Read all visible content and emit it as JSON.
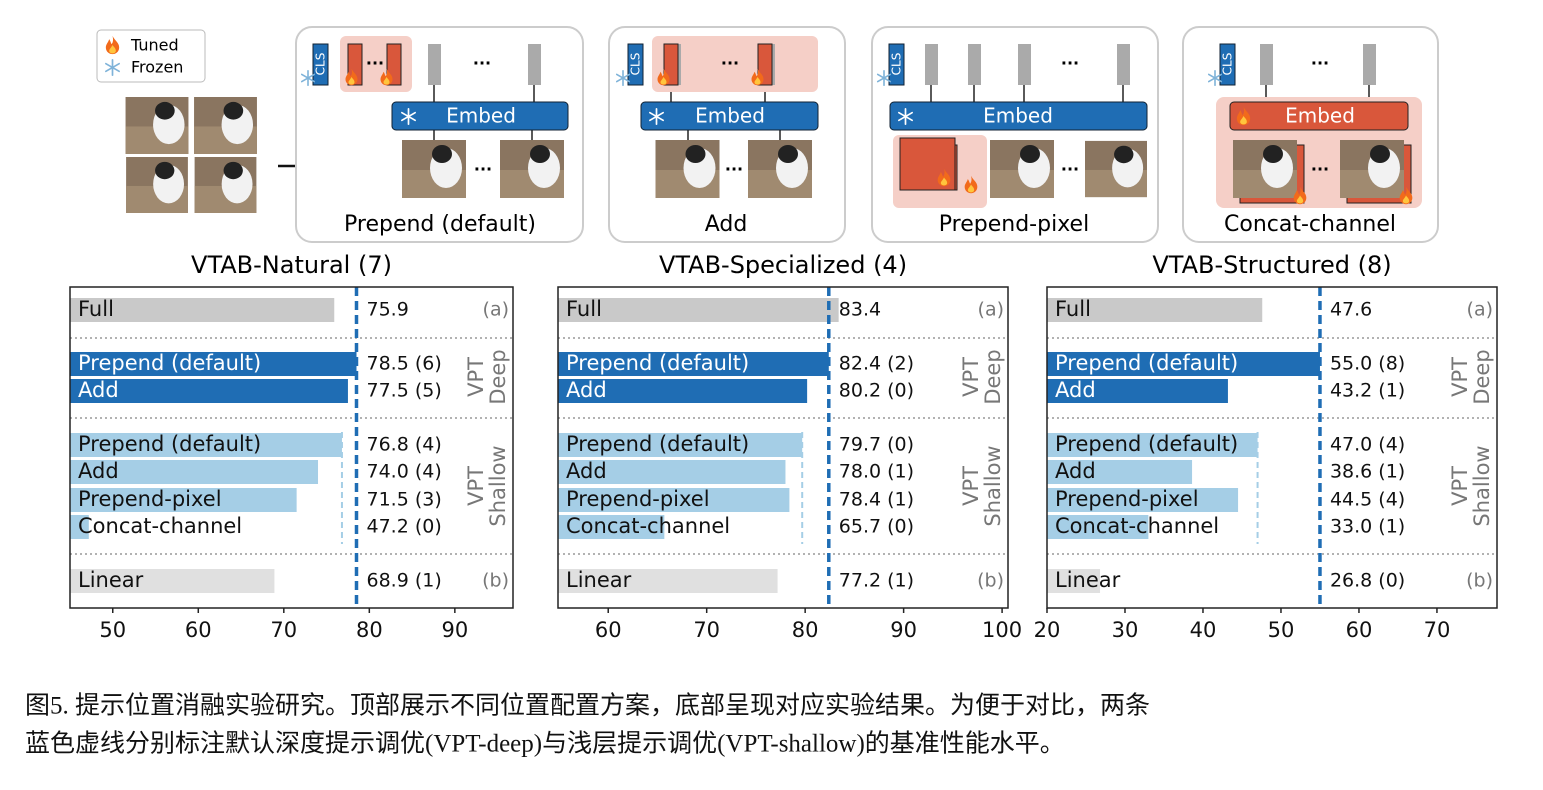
{
  "diagram": {
    "legend": [
      "Tuned",
      "Frozen"
    ],
    "cls": "CLS",
    "embed": "Embed",
    "ellipsis": "...",
    "panels": [
      "Prepend (default)",
      "Add",
      "Prepend-pixel",
      "Concat-channel"
    ]
  },
  "chart_data": [
    {
      "type": "bar",
      "orientation": "horizontal",
      "title": "VTAB-Natural (7)",
      "categories": [
        "Full",
        "Prepend (default)",
        "Add",
        "Prepend (default)",
        "Add",
        "Prepend-pixel",
        "Concat-channel",
        "Linear"
      ],
      "values": [
        75.9,
        78.5,
        77.5,
        76.8,
        74.0,
        71.5,
        47.2,
        68.9
      ],
      "value_labels": [
        "75.9",
        "78.5 (6)",
        "77.5 (5)",
        "76.8 (4)",
        "74.0 (4)",
        "71.5 (3)",
        "47.2 (0)",
        "68.9 (1)"
      ],
      "colors": [
        "#c9c9c9",
        "#1f6db4",
        "#1f6db4",
        "#a5cee6",
        "#a5cee6",
        "#a5cee6",
        "#a5cee6",
        "#e0e0e0"
      ],
      "xlim": [
        45,
        96.8
      ],
      "xticks": [
        50,
        60,
        70,
        80,
        90
      ],
      "group_labels": [
        [
          "(a)"
        ],
        [
          "VPT",
          "Deep"
        ],
        [
          "VPT",
          "Shallow"
        ],
        [
          "(b)"
        ]
      ]
    },
    {
      "type": "bar",
      "orientation": "horizontal",
      "title": "VTAB-Specialized (4)",
      "categories": [
        "Full",
        "Prepend (default)",
        "Add",
        "Prepend (default)",
        "Add",
        "Prepend-pixel",
        "Concat-channel",
        "Linear"
      ],
      "values": [
        83.4,
        82.4,
        80.2,
        79.7,
        78.0,
        78.4,
        65.7,
        77.2
      ],
      "value_labels": [
        "83.4",
        "82.4 (2)",
        "80.2 (0)",
        "79.7 (0)",
        "78.0 (1)",
        "78.4 (1)",
        "65.7 (0)",
        "77.2 (1)"
      ],
      "colors": [
        "#c9c9c9",
        "#1f6db4",
        "#1f6db4",
        "#a5cee6",
        "#a5cee6",
        "#a5cee6",
        "#a5cee6",
        "#e0e0e0"
      ],
      "xlim": [
        54.9,
        100.6
      ],
      "xticks": [
        60,
        70,
        80,
        90,
        100
      ],
      "group_labels": [
        [
          "(a)"
        ],
        [
          "VPT",
          "Deep"
        ],
        [
          "VPT",
          "Shallow"
        ],
        [
          "(b)"
        ]
      ]
    },
    {
      "type": "bar",
      "orientation": "horizontal",
      "title": "VTAB-Structured (8)",
      "categories": [
        "Full",
        "Prepend (default)",
        "Add",
        "Prepend (default)",
        "Add",
        "Prepend-pixel",
        "Concat-channel",
        "Linear"
      ],
      "values": [
        47.6,
        55.0,
        43.2,
        47.0,
        38.6,
        44.5,
        33.0,
        26.8
      ],
      "value_labels": [
        "47.6",
        "55.0 (8)",
        "43.2 (1)",
        "47.0 (4)",
        "38.6 (1)",
        "44.5 (4)",
        "33.0 (1)",
        "26.8 (0)"
      ],
      "colors": [
        "#c9c9c9",
        "#1f6db4",
        "#1f6db4",
        "#a5cee6",
        "#a5cee6",
        "#a5cee6",
        "#a5cee6",
        "#e0e0e0"
      ],
      "xlim": [
        20,
        77.7
      ],
      "xticks": [
        20,
        30,
        40,
        50,
        60,
        70
      ],
      "group_labels": [
        [
          "(a)"
        ],
        [
          "VPT",
          "Deep"
        ],
        [
          "VPT",
          "Shallow"
        ],
        [
          "(b)"
        ]
      ]
    }
  ],
  "caption": [
    "图5. 提示位置消融实验研究。顶部展示不同位置配置方案，底部呈现对应实验结果。为便于对比，两条",
    "蓝色虚线分别标注默认深度提示调优(VPT-deep)与浅层提示调优(VPT-shallow)的基准性能水平。"
  ]
}
